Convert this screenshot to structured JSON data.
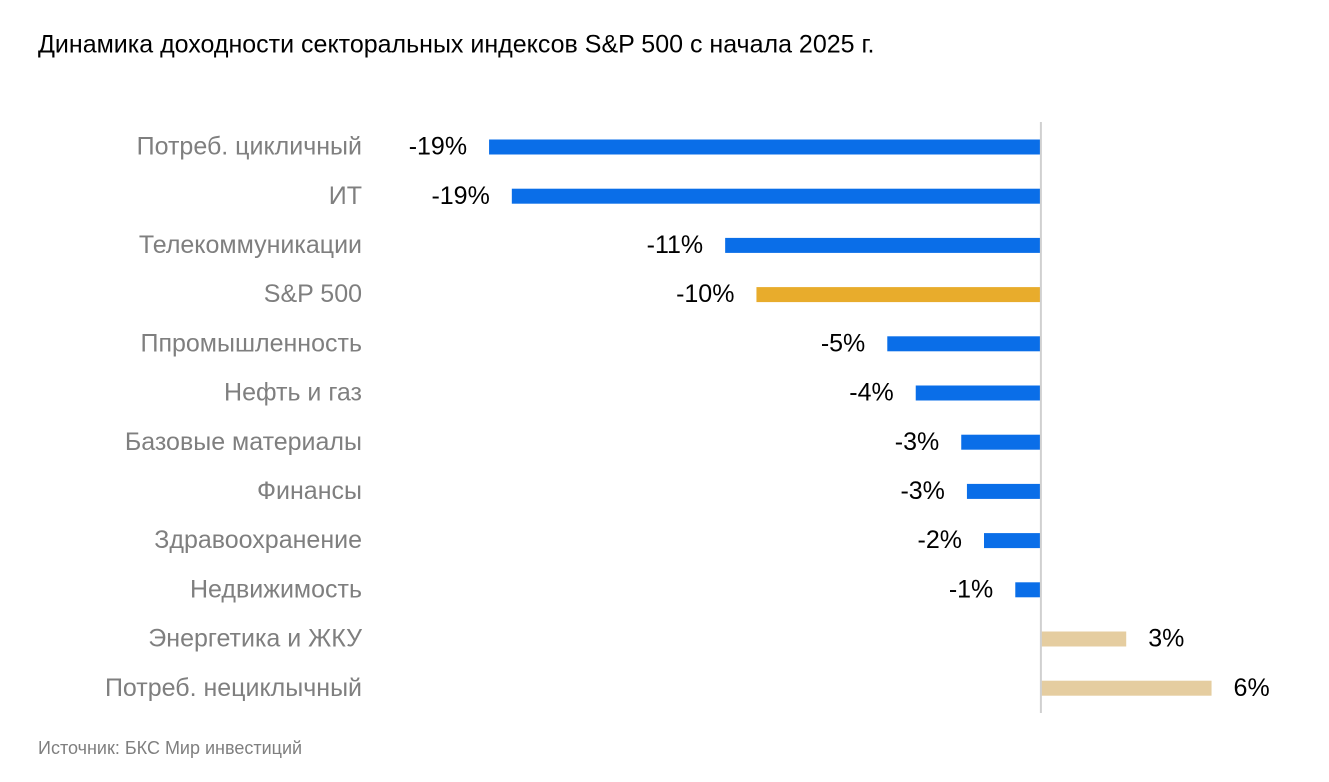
{
  "chart_data": {
    "type": "hbar",
    "title": "Динамика доходности секторальных индексов S&P 500 с начала 2025 г.",
    "source": "Источник: БКС Мир инвестиций",
    "categories": [
      "Потреб. цикличный",
      "ИТ",
      "Телекоммуникации",
      "S&P 500",
      "Ппромышленность",
      "Нефть и газ",
      "Базовые материалы",
      "Финансы",
      "Здравоохранение",
      "Недвижимость",
      "Энергетика и ЖКУ",
      "Потреб. нециклычный"
    ],
    "values": [
      -19.4,
      -18.6,
      -11.1,
      -10.0,
      -5.4,
      -4.4,
      -2.8,
      -2.6,
      -2.0,
      -0.9,
      3.0,
      6.0
    ],
    "value_labels": [
      "-19%",
      "-19%",
      "-11%",
      "-10%",
      "-5%",
      "-4%",
      "-3%",
      "-3%",
      "-2%",
      "-1%",
      "3%",
      "6%"
    ],
    "colors": [
      "#0a6ee8",
      "#0a6ee8",
      "#0a6ee8",
      "#e8ac2c",
      "#0a6ee8",
      "#0a6ee8",
      "#0a6ee8",
      "#0a6ee8",
      "#0a6ee8",
      "#0a6ee8",
      "#e5cda0",
      "#e5cda0"
    ],
    "xlim": [
      -20,
      7
    ]
  }
}
